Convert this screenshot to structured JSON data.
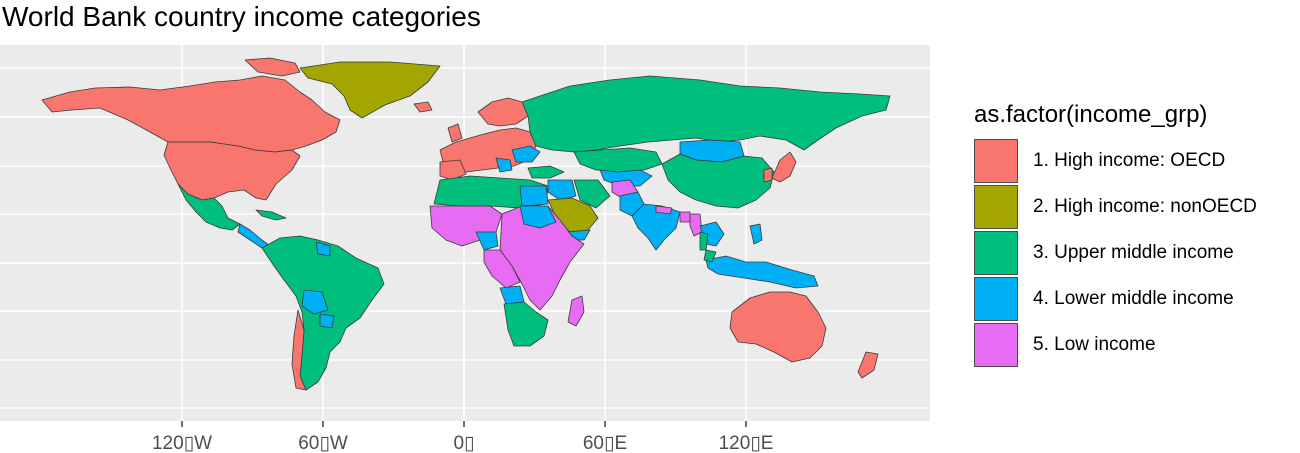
{
  "title": "World Bank country income categories",
  "legend": {
    "title": "as.factor(income_grp)",
    "items": [
      {
        "label": "1. High income: OECD",
        "color": "#F8766D"
      },
      {
        "label": "2. High income: nonOECD",
        "color": "#A3A500"
      },
      {
        "label": "3. Upper middle income",
        "color": "#00BF7D"
      },
      {
        "label": "4. Lower middle income",
        "color": "#00B0F6"
      },
      {
        "label": "5. Low income",
        "color": "#E76BF3"
      }
    ]
  },
  "axis": {
    "x_ticks": [
      "120▯W",
      "60▯W",
      "0▯",
      "60▯E",
      "120▯E"
    ]
  },
  "colors": {
    "panel": "#EBEBEB",
    "grid": "#FFFFFF",
    "border": "#3a3a3a"
  }
}
